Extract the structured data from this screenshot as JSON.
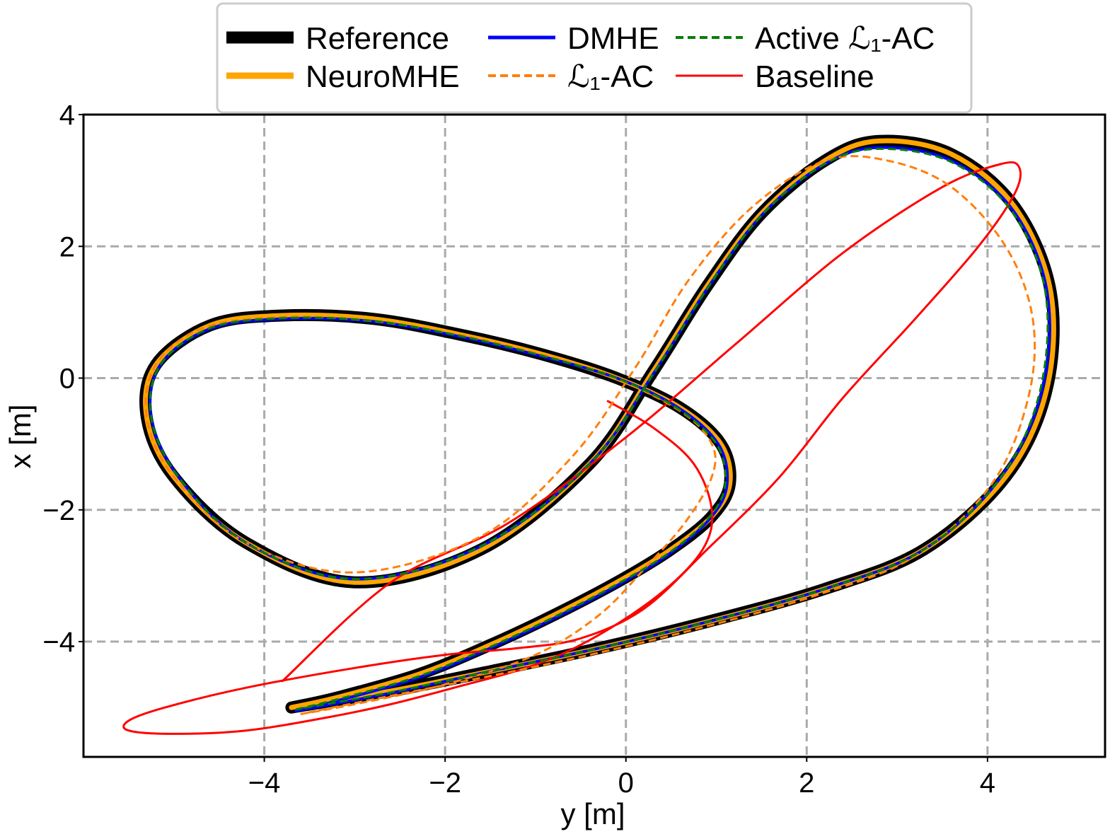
{
  "chart_data": {
    "type": "line",
    "title": "",
    "xlabel": "y [m]",
    "ylabel": "x [m]",
    "xlim": [
      -6.0,
      5.3
    ],
    "ylim": [
      -5.75,
      4.0
    ],
    "xticks": [
      -4,
      -2,
      0,
      2,
      4
    ],
    "yticks": [
      -4,
      -2,
      0,
      2,
      4
    ],
    "xtick_labels": [
      "−4",
      "−2",
      "0",
      "2",
      "4"
    ],
    "ytick_labels": [
      "−4",
      "−2",
      "0",
      "2",
      "4"
    ],
    "grid": true,
    "legend_position": "top-center",
    "series": [
      {
        "name": "Reference",
        "color": "#000000",
        "style": "solid",
        "x": [
          -3.7,
          -3.2,
          -2.3,
          -1.5,
          -0.8,
          -0.1,
          0.5,
          0.95,
          1.15,
          1.05,
          0.6,
          -0.1,
          -0.9,
          -1.8,
          -2.8,
          -3.8,
          -4.6,
          -5.2,
          -5.3,
          -5.0,
          -4.2,
          -3.0,
          -1.6,
          -0.4,
          0.3,
          0.9,
          1.5,
          2.2,
          2.8,
          3.6,
          4.3,
          4.7,
          4.65,
          4.2,
          3.3,
          2.2,
          0.9,
          -0.3,
          -1.5,
          -2.6,
          -3.7
        ],
        "y": [
          -5.0,
          -4.85,
          -4.5,
          -4.05,
          -3.6,
          -3.1,
          -2.6,
          -2.1,
          -1.6,
          -1.0,
          -0.45,
          0.0,
          0.35,
          0.65,
          0.9,
          0.95,
          0.8,
          0.2,
          -0.6,
          -1.5,
          -2.5,
          -3.1,
          -2.6,
          -1.3,
          0.1,
          1.4,
          2.5,
          3.3,
          3.6,
          3.4,
          2.6,
          1.3,
          -0.2,
          -1.5,
          -2.6,
          -3.2,
          -3.7,
          -4.1,
          -4.45,
          -4.75,
          -5.0
        ]
      },
      {
        "name": "NeuroMHE",
        "color": "#FFA500",
        "style": "solid",
        "x": [
          -3.7,
          -3.2,
          -2.3,
          -1.5,
          -0.8,
          -0.1,
          0.5,
          0.95,
          1.15,
          1.05,
          0.6,
          -0.1,
          -0.9,
          -1.8,
          -2.8,
          -3.8,
          -4.6,
          -5.2,
          -5.3,
          -5.0,
          -4.2,
          -3.0,
          -1.6,
          -0.4,
          0.3,
          0.9,
          1.5,
          2.2,
          2.8,
          3.6,
          4.3,
          4.7,
          4.65,
          4.2,
          3.3,
          2.2,
          0.9,
          -0.3,
          -1.5,
          -2.6,
          -3.7
        ],
        "y": [
          -5.0,
          -4.85,
          -4.5,
          -4.05,
          -3.6,
          -3.1,
          -2.6,
          -2.1,
          -1.6,
          -1.0,
          -0.45,
          0.0,
          0.35,
          0.65,
          0.9,
          0.95,
          0.8,
          0.2,
          -0.6,
          -1.5,
          -2.5,
          -3.1,
          -2.6,
          -1.3,
          0.1,
          1.4,
          2.5,
          3.3,
          3.6,
          3.4,
          2.6,
          1.3,
          -0.2,
          -1.5,
          -2.6,
          -3.2,
          -3.7,
          -4.1,
          -4.45,
          -4.75,
          -5.0
        ]
      },
      {
        "name": "DMHE",
        "color": "#0000FF",
        "style": "solid",
        "x": [
          -3.65,
          -3.2,
          -2.3,
          -1.5,
          -0.8,
          -0.1,
          0.5,
          0.95,
          1.12,
          1.02,
          0.58,
          -0.1,
          -0.9,
          -1.8,
          -2.8,
          -3.8,
          -4.6,
          -5.15,
          -5.25,
          -4.95,
          -4.2,
          -3.0,
          -1.6,
          -0.4,
          0.32,
          0.92,
          1.52,
          2.2,
          2.8,
          3.6,
          4.28,
          4.66,
          4.6,
          4.15,
          3.3,
          2.2,
          0.9,
          -0.3,
          -1.5,
          -2.6,
          -3.65
        ],
        "y": [
          -5.05,
          -4.9,
          -4.55,
          -4.1,
          -3.65,
          -3.15,
          -2.65,
          -2.1,
          -1.6,
          -1.0,
          -0.45,
          0.0,
          0.32,
          0.62,
          0.86,
          0.9,
          0.75,
          0.2,
          -0.6,
          -1.5,
          -2.5,
          -3.05,
          -2.55,
          -1.3,
          0.1,
          1.4,
          2.5,
          3.25,
          3.5,
          3.3,
          2.55,
          1.3,
          -0.2,
          -1.5,
          -2.6,
          -3.2,
          -3.7,
          -4.1,
          -4.45,
          -4.78,
          -5.05
        ]
      },
      {
        "name": "L1-AC",
        "color": "#FF7F0E",
        "style": "dashed",
        "x": [
          -3.6,
          -3.0,
          -2.0,
          -1.0,
          -0.3,
          0.2,
          0.65,
          0.95,
          0.95,
          0.6,
          -0.2,
          -1.0,
          -1.9,
          -2.9,
          -3.9,
          -4.7,
          -5.2,
          -5.3,
          -5.0,
          -4.2,
          -3.0,
          -1.6,
          -0.6,
          0.1,
          0.7,
          1.4,
          2.2,
          2.9,
          3.6,
          4.2,
          4.5,
          4.45,
          4.05,
          3.2,
          2.1,
          0.8,
          -0.4,
          -1.6,
          -2.7,
          -3.6
        ],
        "y": [
          -5.1,
          -4.95,
          -4.65,
          -4.2,
          -3.6,
          -2.9,
          -2.2,
          -1.5,
          -1.0,
          -0.5,
          0.05,
          0.38,
          0.67,
          0.88,
          0.92,
          0.75,
          0.2,
          -0.6,
          -1.5,
          -2.5,
          -2.95,
          -2.4,
          -1.2,
          0.15,
          1.5,
          2.6,
          3.3,
          3.3,
          2.9,
          2.0,
          0.9,
          -0.3,
          -1.6,
          -2.7,
          -3.3,
          -3.8,
          -4.2,
          -4.55,
          -4.85,
          -5.1
        ]
      },
      {
        "name": "Active L1-AC",
        "color": "#008000",
        "style": "dashed",
        "x": [
          -3.65,
          -3.2,
          -2.3,
          -1.5,
          -0.8,
          -0.1,
          0.5,
          0.93,
          1.1,
          1.0,
          0.56,
          -0.1,
          -0.9,
          -1.8,
          -2.8,
          -3.8,
          -4.6,
          -5.15,
          -5.25,
          -4.95,
          -4.2,
          -3.0,
          -1.6,
          -0.4,
          0.32,
          0.92,
          1.52,
          2.2,
          2.8,
          3.6,
          4.27,
          4.64,
          4.58,
          4.15,
          3.3,
          2.2,
          0.9,
          -0.3,
          -1.5,
          -2.6,
          -3.65
        ],
        "y": [
          -5.03,
          -4.88,
          -4.53,
          -4.08,
          -3.63,
          -3.13,
          -2.63,
          -2.1,
          -1.6,
          -1.0,
          -0.45,
          0.0,
          0.33,
          0.63,
          0.87,
          0.91,
          0.76,
          0.2,
          -0.6,
          -1.5,
          -2.5,
          -3.05,
          -2.55,
          -1.3,
          0.1,
          1.4,
          2.5,
          3.25,
          3.48,
          3.28,
          2.53,
          1.3,
          -0.2,
          -1.5,
          -2.6,
          -3.2,
          -3.7,
          -4.1,
          -4.45,
          -4.77,
          -5.03
        ]
      },
      {
        "name": "Baseline",
        "color": "#FF0000",
        "style": "solid",
        "x": [
          -0.2,
          0.3,
          0.75,
          0.95,
          0.85,
          0.4,
          -0.3,
          -1.0,
          -1.9,
          -2.6,
          -3.3,
          -4.2,
          -5.0,
          -5.5,
          -5.5,
          -5.1,
          -4.2,
          -3.0,
          -2.0,
          -1.2,
          -0.5,
          0.2,
          0.9,
          1.7,
          2.4,
          3.2,
          3.9,
          4.3,
          4.35,
          4.15,
          3.5,
          2.4,
          1.2,
          0.0,
          -1.3,
          -2.6,
          -3.8
        ],
        "y": [
          -0.35,
          -0.75,
          -1.3,
          -2.0,
          -2.6,
          -3.25,
          -3.9,
          -4.35,
          -4.7,
          -4.95,
          -5.15,
          -5.35,
          -5.4,
          -5.35,
          -5.2,
          -5.0,
          -4.7,
          -4.4,
          -4.2,
          -4.1,
          -3.95,
          -3.5,
          -2.6,
          -1.5,
          -0.3,
          0.9,
          2.0,
          2.8,
          3.2,
          3.25,
          2.9,
          1.9,
          0.5,
          -0.9,
          -2.2,
          -3.1,
          -4.6
        ]
      }
    ],
    "legend": [
      {
        "label": "Reference",
        "color": "#000000",
        "style": "solid",
        "width": 17
      },
      {
        "label": "DMHE",
        "color": "#0000FF",
        "style": "solid",
        "width": 5
      },
      {
        "label": "Active ℒ₁-AC",
        "color": "#008000",
        "style": "dashed",
        "width": 4
      },
      {
        "label": "NeuroMHE",
        "color": "#FFA500",
        "style": "solid",
        "width": 9
      },
      {
        "label": "ℒ₁-AC",
        "color": "#FF7F0E",
        "style": "dashed",
        "width": 4
      },
      {
        "label": "Baseline",
        "color": "#FF0000",
        "style": "solid",
        "width": 3
      }
    ]
  }
}
